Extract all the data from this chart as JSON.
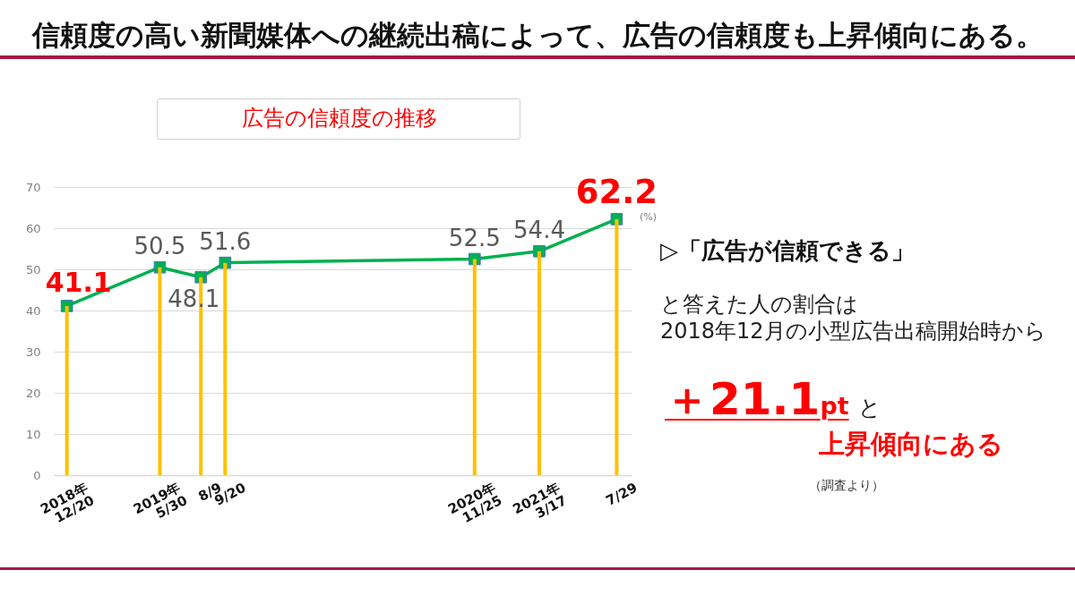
{
  "chart_data": {
    "type": "line",
    "title": "信頼度の高い新聞媒体への継続出稿によって、広告の信頼度も上昇傾向にある。",
    "subtitle": "広告の信頼度の推移",
    "ylabel": "(%)",
    "x": [
      "2018-12-20",
      "2019-05-30",
      "2019-08-09",
      "2019-09-20",
      "2020-11-25",
      "2021-03-17",
      "2021-07-29"
    ],
    "xlim": [
      "2018-12-05",
      "2021-08-16"
    ],
    "xticks": [
      {
        "value": "2018-12-20",
        "label": "2018年\n12/20"
      },
      {
        "value": "2019-05-30",
        "label": "2019年\n5/30"
      },
      {
        "value": "2019-08-09",
        "label": "8/9"
      },
      {
        "value": "2019-09-20",
        "label": "9/20"
      },
      {
        "value": "2020-11-25",
        "label": "2020年\n11/25"
      },
      {
        "value": "2021-03-17",
        "label": "2021年\n3/17"
      },
      {
        "value": "2021-07-29",
        "label": "7/29"
      }
    ],
    "ylim": [
      0,
      70
    ],
    "yticks": [
      0,
      10,
      20,
      30,
      40,
      50,
      60,
      70
    ],
    "grid": "y",
    "marker": "square",
    "series": [
      {
        "type": "line",
        "color": "#00b050",
        "values": [
          41.1,
          50.5,
          48.1,
          51.6,
          52.5,
          54.4,
          62.2
        ],
        "value_labels": [
          "41.1",
          "50.5",
          "48.1",
          "51.6",
          "52.5",
          "54.4",
          "62.2"
        ]
      },
      {
        "type": "bar",
        "color": "#ffc000",
        "values": [
          41.1,
          50.5,
          48.1,
          51.6,
          52.5,
          54.4,
          62.2
        ]
      }
    ],
    "annotations": [
      "▷「広告が信頼できる」",
      "と答えた人の割合は",
      "2018年12月の小型広告出稿開始時から",
      "＋21.1pt",
      "と",
      "上昇傾向にある",
      "（調査より）"
    ]
  }
}
